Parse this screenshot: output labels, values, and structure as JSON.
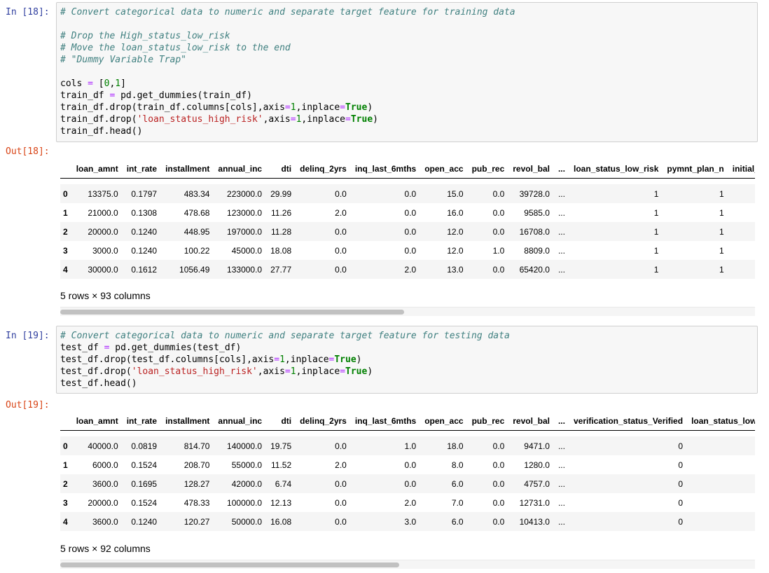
{
  "cells": [
    {
      "in_prompt": "In [18]:",
      "out_prompt": "Out[18]:",
      "code_lines": [
        [
          {
            "t": "cm",
            "v": "# Convert categorical data to numeric and separate target feature for training data"
          }
        ],
        [
          {
            "t": "",
            "v": ""
          }
        ],
        [
          {
            "t": "cm",
            "v": "# Drop the High_status_low_risk"
          }
        ],
        [
          {
            "t": "cm",
            "v": "# Move the loan_status_low_risk to the end"
          }
        ],
        [
          {
            "t": "cm",
            "v": "# \"Dummy Variable Trap\""
          }
        ],
        [
          {
            "t": "",
            "v": ""
          }
        ],
        [
          {
            "t": "",
            "v": "cols "
          },
          {
            "t": "op",
            "v": "="
          },
          {
            "t": "",
            "v": " ["
          },
          {
            "t": "num",
            "v": "0"
          },
          {
            "t": "",
            "v": ","
          },
          {
            "t": "num",
            "v": "1"
          },
          {
            "t": "",
            "v": "]"
          }
        ],
        [
          {
            "t": "",
            "v": "train_df "
          },
          {
            "t": "op",
            "v": "="
          },
          {
            "t": "",
            "v": " pd.get_dummies(train_df)"
          }
        ],
        [
          {
            "t": "",
            "v": "train_df.drop(train_df.columns[cols],axis"
          },
          {
            "t": "op",
            "v": "="
          },
          {
            "t": "num",
            "v": "1"
          },
          {
            "t": "",
            "v": ",inplace"
          },
          {
            "t": "op",
            "v": "="
          },
          {
            "t": "kw",
            "v": "True"
          },
          {
            "t": "",
            "v": ")"
          }
        ],
        [
          {
            "t": "",
            "v": "train_df.drop("
          },
          {
            "t": "str",
            "v": "'loan_status_high_risk'"
          },
          {
            "t": "",
            "v": ",axis"
          },
          {
            "t": "op",
            "v": "="
          },
          {
            "t": "num",
            "v": "1"
          },
          {
            "t": "",
            "v": ",inplace"
          },
          {
            "t": "op",
            "v": "="
          },
          {
            "t": "kw",
            "v": "True"
          },
          {
            "t": "",
            "v": ")"
          }
        ],
        [
          {
            "t": "",
            "v": "train_df.head()"
          }
        ]
      ],
      "table": {
        "columns": [
          "",
          "loan_amnt",
          "int_rate",
          "installment",
          "annual_inc",
          "dti",
          "delinq_2yrs",
          "inq_last_6mths",
          "open_acc",
          "pub_rec",
          "revol_bal",
          "...",
          "loan_status_low_risk",
          "pymnt_plan_n",
          "initial_li"
        ],
        "rows": [
          [
            "0",
            "13375.0",
            "0.1797",
            "483.34",
            "223000.0",
            "29.99",
            "0.0",
            "0.0",
            "15.0",
            "0.0",
            "39728.0",
            "...",
            "1",
            "1",
            ""
          ],
          [
            "1",
            "21000.0",
            "0.1308",
            "478.68",
            "123000.0",
            "11.26",
            "2.0",
            "0.0",
            "16.0",
            "0.0",
            "9585.0",
            "...",
            "1",
            "1",
            ""
          ],
          [
            "2",
            "20000.0",
            "0.1240",
            "448.95",
            "197000.0",
            "11.28",
            "0.0",
            "0.0",
            "12.0",
            "0.0",
            "16708.0",
            "...",
            "1",
            "1",
            ""
          ],
          [
            "3",
            "3000.0",
            "0.1240",
            "100.22",
            "45000.0",
            "18.08",
            "0.0",
            "0.0",
            "12.0",
            "1.0",
            "8809.0",
            "...",
            "1",
            "1",
            ""
          ],
          [
            "4",
            "30000.0",
            "0.1612",
            "1056.49",
            "133000.0",
            "27.77",
            "0.0",
            "2.0",
            "13.0",
            "0.0",
            "65420.0",
            "...",
            "1",
            "1",
            ""
          ]
        ]
      },
      "footer": "5 rows × 93 columns",
      "scroll_fraction": 0.495
    },
    {
      "in_prompt": "In [19]:",
      "out_prompt": "Out[19]:",
      "code_lines": [
        [
          {
            "t": "cm",
            "v": "# Convert categorical data to numeric and separate target feature for testing data"
          }
        ],
        [
          {
            "t": "",
            "v": "test_df "
          },
          {
            "t": "op",
            "v": "="
          },
          {
            "t": "",
            "v": " pd.get_dummies(test_df)"
          }
        ],
        [
          {
            "t": "",
            "v": "test_df.drop(test_df.columns[cols],axis"
          },
          {
            "t": "op",
            "v": "="
          },
          {
            "t": "num",
            "v": "1"
          },
          {
            "t": "",
            "v": ",inplace"
          },
          {
            "t": "op",
            "v": "="
          },
          {
            "t": "kw",
            "v": "True"
          },
          {
            "t": "",
            "v": ")"
          }
        ],
        [
          {
            "t": "",
            "v": "test_df.drop("
          },
          {
            "t": "str",
            "v": "'loan_status_high_risk'"
          },
          {
            "t": "",
            "v": ",axis"
          },
          {
            "t": "op",
            "v": "="
          },
          {
            "t": "num",
            "v": "1"
          },
          {
            "t": "",
            "v": ",inplace"
          },
          {
            "t": "op",
            "v": "="
          },
          {
            "t": "kw",
            "v": "True"
          },
          {
            "t": "",
            "v": ")"
          }
        ],
        [
          {
            "t": "",
            "v": "test_df.head()"
          }
        ]
      ],
      "table": {
        "columns": [
          "",
          "loan_amnt",
          "int_rate",
          "installment",
          "annual_inc",
          "dti",
          "delinq_2yrs",
          "inq_last_6mths",
          "open_acc",
          "pub_rec",
          "revol_bal",
          "...",
          "verification_status_Verified",
          "loan_status_low_"
        ],
        "rows": [
          [
            "0",
            "40000.0",
            "0.0819",
            "814.70",
            "140000.0",
            "19.75",
            "0.0",
            "1.0",
            "18.0",
            "0.0",
            "9471.0",
            "...",
            "0",
            ""
          ],
          [
            "1",
            "6000.0",
            "0.1524",
            "208.70",
            "55000.0",
            "11.52",
            "2.0",
            "0.0",
            "8.0",
            "0.0",
            "1280.0",
            "...",
            "0",
            ""
          ],
          [
            "2",
            "3600.0",
            "0.1695",
            "128.27",
            "42000.0",
            "6.74",
            "0.0",
            "0.0",
            "6.0",
            "0.0",
            "4757.0",
            "...",
            "0",
            ""
          ],
          [
            "3",
            "20000.0",
            "0.1524",
            "478.33",
            "100000.0",
            "12.13",
            "0.0",
            "2.0",
            "7.0",
            "0.0",
            "12731.0",
            "...",
            "0",
            ""
          ],
          [
            "4",
            "3600.0",
            "0.1240",
            "120.27",
            "50000.0",
            "16.08",
            "0.0",
            "3.0",
            "6.0",
            "0.0",
            "10413.0",
            "...",
            "0",
            ""
          ]
        ]
      },
      "footer": "5 rows × 92 columns",
      "scroll_fraction": 0.488
    }
  ]
}
